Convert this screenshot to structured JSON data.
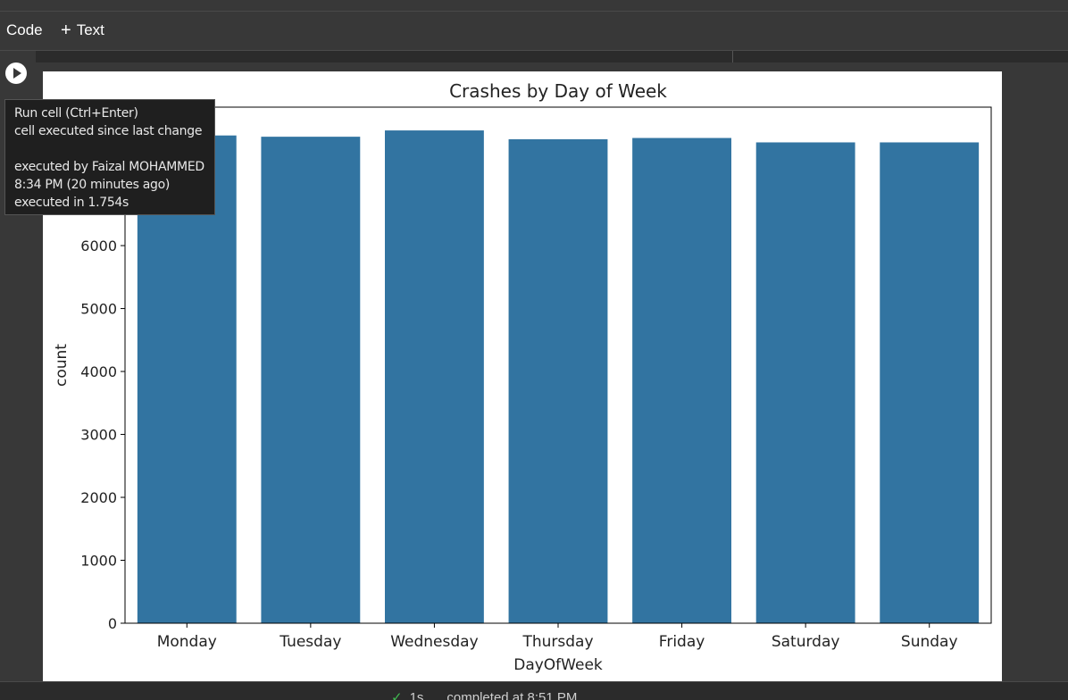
{
  "toolbar": {
    "code_label": "Code",
    "text_label": "Text",
    "plus_icon": "+"
  },
  "tooltip": {
    "line1": "Run cell (Ctrl+Enter)",
    "line2": "cell executed since last change",
    "line3": "executed by Faizal MOHAMMED",
    "line4": "8:34 PM (20 minutes ago)",
    "line5": "executed in 1.754s"
  },
  "status": {
    "check_icon": "✓",
    "time": "1s",
    "completed": "completed at 8:51 PM"
  },
  "chart_data": {
    "type": "bar",
    "title": "Crashes by Day of Week",
    "xlabel": "DayOfWeek",
    "ylabel": "count",
    "categories": [
      "Monday",
      "Tuesday",
      "Wednesday",
      "Thursday",
      "Friday",
      "Saturday",
      "Sunday"
    ],
    "values": [
      7750,
      7730,
      7830,
      7690,
      7710,
      7640,
      7640
    ],
    "ylim": [
      0,
      8200
    ],
    "yticks": [
      0,
      1000,
      2000,
      3000,
      4000,
      5000,
      6000
    ],
    "grid": false,
    "legend": "none",
    "bar_color": "#3274a1"
  }
}
